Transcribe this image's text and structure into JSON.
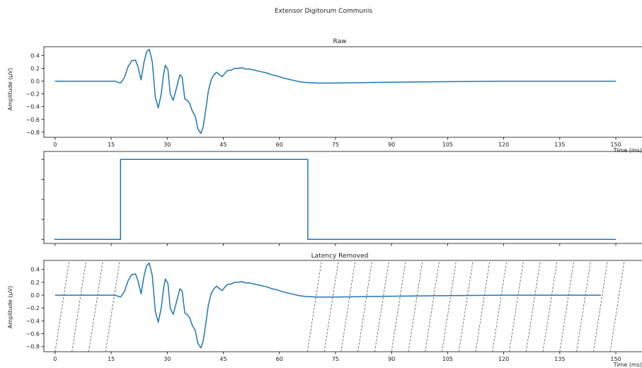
{
  "figure_title": "Extensor Digitorum Communis",
  "colors": {
    "line": "#1f77b4",
    "text": "#222222",
    "axis": "#000000",
    "dash": "#555555"
  },
  "chart_data": [
    {
      "type": "line",
      "title": "Raw",
      "xlabel": "Time (ms)",
      "ylabel": "Amplitude (μV)",
      "xlim": [
        -3,
        157
      ],
      "ylim": [
        -0.88,
        0.54
      ],
      "xticks": [
        0,
        15,
        30,
        45,
        60,
        75,
        90,
        105,
        120,
        135,
        150
      ],
      "yticks": [
        0.4,
        0.2,
        0.0,
        -0.2,
        -0.4,
        -0.6,
        -0.8
      ],
      "ytick_labels": [
        "0.4",
        "0.2",
        "0.0",
        "−0.2",
        "−0.4",
        "−0.6",
        "−0.8"
      ],
      "series": [
        {
          "x": [
            0,
            10,
            16,
            17.5,
            18.5,
            19.5,
            20.5,
            21.5,
            22.2,
            23,
            23.8,
            24.5,
            25.2,
            26,
            26.8,
            27.6,
            28.4,
            29,
            29.5,
            30.2,
            30.8,
            31.6,
            32.5,
            33.4,
            34,
            34.7,
            35.3,
            36,
            36.7,
            37.5,
            38.2,
            39,
            39.6,
            40.3,
            41,
            41.8,
            42.5,
            43.2,
            44,
            44.7,
            45.5,
            46.2,
            47,
            48,
            49,
            50,
            51,
            52,
            53.5,
            55,
            56.5,
            58,
            59.5,
            61,
            62.5,
            64,
            65.5,
            67,
            70,
            75,
            85,
            100,
            120,
            150
          ],
          "y": [
            0,
            0,
            0,
            -0.03,
            0.05,
            0.22,
            0.32,
            0.33,
            0.22,
            0.02,
            0.3,
            0.46,
            0.5,
            0.3,
            -0.25,
            -0.42,
            -0.2,
            0.1,
            0.25,
            0.18,
            -0.2,
            -0.3,
            -0.1,
            0.1,
            0.06,
            -0.28,
            -0.3,
            -0.35,
            -0.47,
            -0.55,
            -0.75,
            -0.82,
            -0.72,
            -0.45,
            -0.15,
            0.03,
            0.1,
            0.14,
            0.1,
            0.07,
            0.13,
            0.17,
            0.17,
            0.2,
            0.2,
            0.21,
            0.19,
            0.19,
            0.17,
            0.15,
            0.13,
            0.1,
            0.08,
            0.05,
            0.03,
            0.01,
            -0.01,
            -0.02,
            -0.03,
            -0.03,
            -0.02,
            -0.01,
            0,
            0
          ]
        }
      ]
    },
    {
      "type": "line",
      "title": "",
      "xlim": [
        -3,
        157
      ],
      "ylim": [
        -0.05,
        1.1
      ],
      "xticks": [
        0,
        15,
        30,
        45,
        60,
        75,
        90,
        105,
        120,
        135,
        150
      ],
      "yticks": [
        0,
        0.25,
        0.5,
        0.75,
        1.0
      ],
      "series": [
        {
          "x": [
            -0.2,
            17.5,
            17.5,
            67.6,
            67.6,
            150
          ],
          "y": [
            0,
            0,
            1,
            1,
            0,
            0
          ]
        }
      ]
    },
    {
      "type": "line",
      "title": "Latency Removed",
      "xlabel": "Time (ms)",
      "ylabel": "Amplitude (μV)",
      "xlim": [
        -3,
        157
      ],
      "ylim": [
        -0.88,
        0.54
      ],
      "xticks": [
        0,
        15,
        30,
        45,
        60,
        75,
        90,
        105,
        120,
        135,
        150
      ],
      "yticks": [
        0.4,
        0.2,
        0.0,
        -0.2,
        -0.4,
        -0.6,
        -0.8
      ],
      "ytick_labels": [
        "0.4",
        "0.2",
        "0.0",
        "−0.2",
        "−0.4",
        "−0.6",
        "−0.8"
      ],
      "series": [
        {
          "x": [
            0,
            10,
            16,
            17.5,
            18.5,
            19.5,
            20.5,
            21.5,
            22.2,
            23,
            23.8,
            24.5,
            25.2,
            26,
            26.8,
            27.6,
            28.4,
            29,
            29.5,
            30.2,
            30.8,
            31.6,
            32.5,
            33.4,
            34,
            34.7,
            35.3,
            36,
            36.7,
            37.5,
            38.2,
            39,
            39.6,
            40.3,
            41,
            41.8,
            42.5,
            43.2,
            44,
            44.7,
            45.5,
            46.2,
            47,
            48,
            49,
            50,
            51,
            52,
            53.5,
            55,
            56.5,
            58,
            59.5,
            61,
            62.5,
            64,
            65.5,
            67,
            70,
            75,
            85,
            100,
            120,
            146
          ],
          "y": [
            0,
            0,
            0,
            -0.03,
            0.05,
            0.22,
            0.32,
            0.33,
            0.22,
            0.02,
            0.3,
            0.46,
            0.5,
            0.3,
            -0.25,
            -0.42,
            -0.2,
            0.1,
            0.25,
            0.18,
            -0.2,
            -0.3,
            -0.1,
            0.1,
            0.06,
            -0.28,
            -0.3,
            -0.35,
            -0.47,
            -0.55,
            -0.75,
            -0.82,
            -0.72,
            -0.45,
            -0.15,
            0.03,
            0.1,
            0.14,
            0.1,
            0.07,
            0.13,
            0.17,
            0.17,
            0.2,
            0.2,
            0.21,
            0.19,
            0.19,
            0.17,
            0.15,
            0.13,
            0.1,
            0.08,
            0.05,
            0.03,
            0.01,
            -0.01,
            -0.02,
            -0.03,
            -0.03,
            -0.02,
            -0.01,
            0,
            0
          ]
        }
      ],
      "dashed_marks_x": [
        0,
        4.5,
        9,
        13.5,
        67.5,
        72,
        76.5,
        81,
        85.5,
        90,
        94.5,
        99,
        103.5,
        108,
        112.5,
        117,
        121.5,
        126,
        130.5,
        135,
        139.5,
        144,
        148.5
      ],
      "dashed_mark_run": 3.8
    }
  ]
}
